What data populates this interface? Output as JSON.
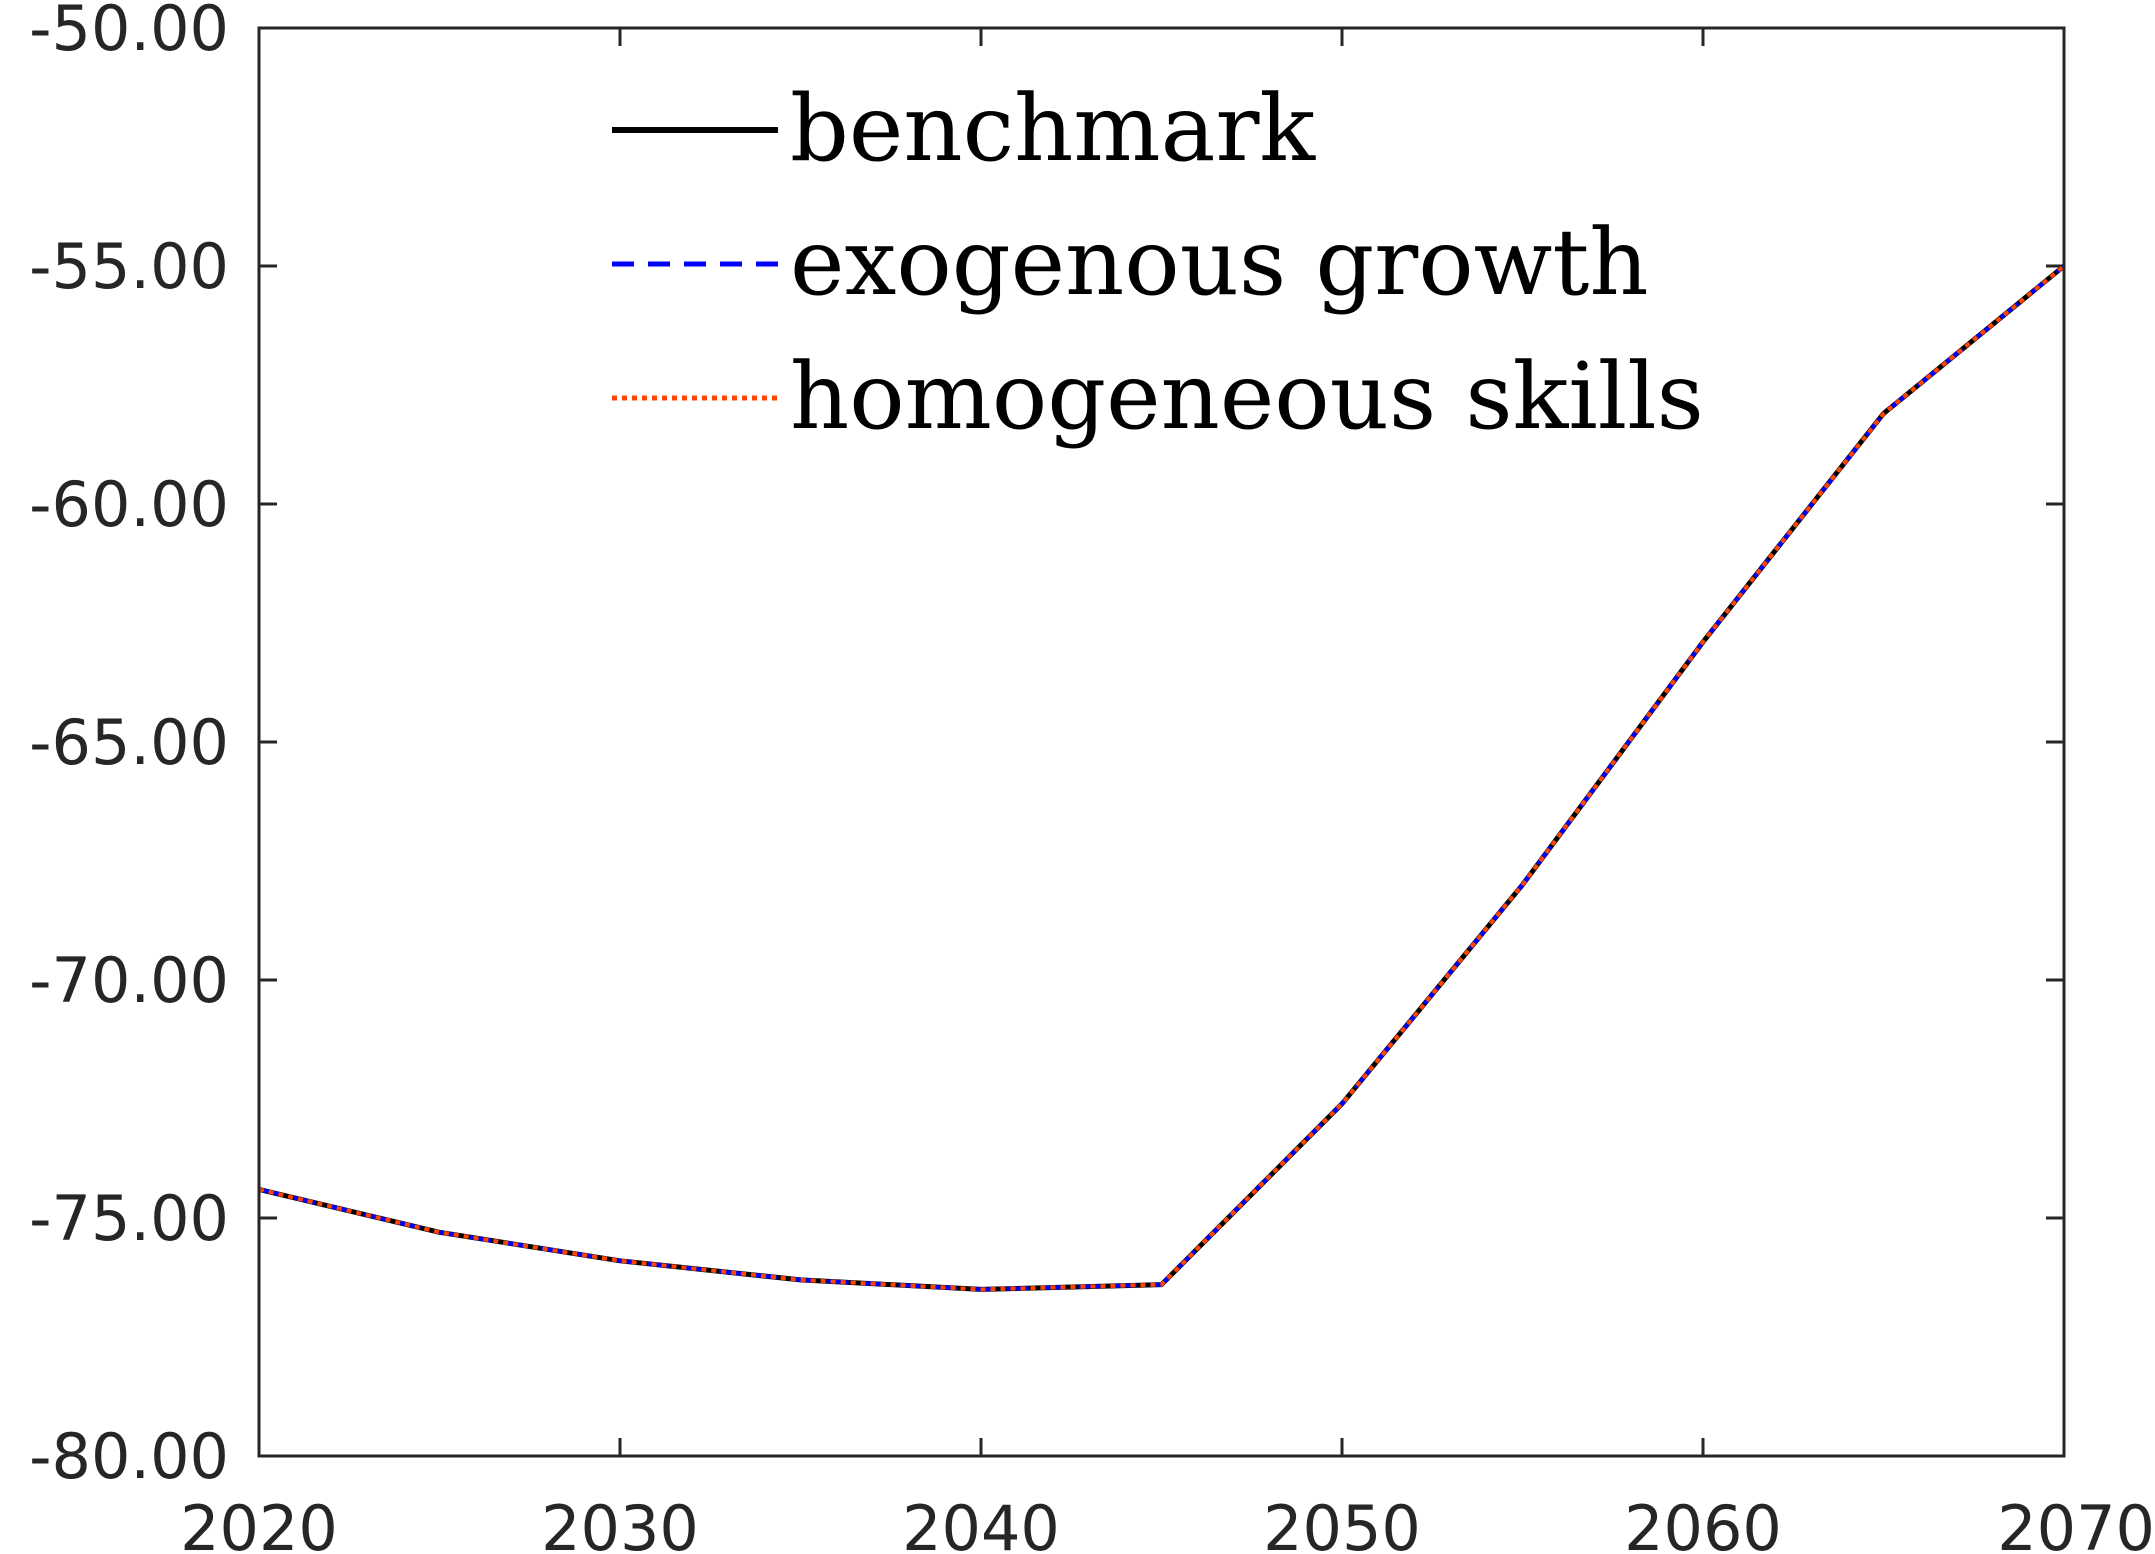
{
  "chart_data": {
    "type": "line",
    "title": "",
    "xlabel": "",
    "ylabel": "",
    "xlim": [
      2020,
      2070
    ],
    "ylim": [
      -80,
      -50
    ],
    "xticks": [
      2020,
      2030,
      2040,
      2050,
      2060,
      2070
    ],
    "yticks": [
      -80,
      -75,
      -70,
      -65,
      -60,
      -55,
      -50
    ],
    "x_tick_labels": [
      "2020",
      "2030",
      "2040",
      "2050",
      "2060",
      "2070"
    ],
    "y_tick_labels": [
      "-80.00",
      "-75.00",
      "-70.00",
      "-65.00",
      "-60.00",
      "-55.00",
      "-50.00"
    ],
    "grid": false,
    "legend_position": "top-center",
    "x": [
      2020,
      2025,
      2030,
      2035,
      2040,
      2045,
      2050,
      2055,
      2060,
      2065,
      2070
    ],
    "series": [
      {
        "name": "benchmark",
        "style": "solid",
        "color": "#000000",
        "values": [
          -74.4,
          -75.3,
          -75.9,
          -76.3,
          -76.5,
          -76.4,
          -72.6,
          -68.0,
          -62.9,
          -58.1,
          -55.0
        ]
      },
      {
        "name": "exogenous growth",
        "style": "dashed",
        "color": "#0000ff",
        "values": [
          -74.4,
          -75.3,
          -75.9,
          -76.3,
          -76.5,
          -76.4,
          -72.6,
          -68.0,
          -62.9,
          -58.1,
          -55.0
        ]
      },
      {
        "name": "homogeneous skills",
        "style": "dotted",
        "color": "#ff4500",
        "values": [
          -74.4,
          -75.3,
          -75.9,
          -76.3,
          -76.5,
          -76.4,
          -72.6,
          -68.0,
          -62.9,
          -58.1,
          -55.0
        ]
      }
    ]
  }
}
